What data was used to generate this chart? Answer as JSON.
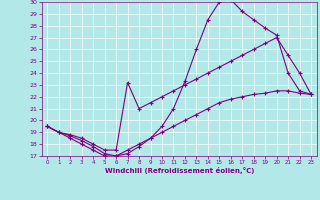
{
  "xlabel": "Windchill (Refroidissement éolien,°C)",
  "bg_color": "#b2e8e8",
  "line_color": "#800080",
  "grid_color": "#ffffff",
  "xlim": [
    -0.5,
    23.5
  ],
  "ylim": [
    17,
    30
  ],
  "xticks": [
    0,
    1,
    2,
    3,
    4,
    5,
    6,
    7,
    8,
    9,
    10,
    11,
    12,
    13,
    14,
    15,
    16,
    17,
    18,
    19,
    20,
    21,
    22,
    23
  ],
  "yticks": [
    17,
    18,
    19,
    20,
    21,
    22,
    23,
    24,
    25,
    26,
    27,
    28,
    29,
    30
  ],
  "lines": [
    {
      "x": [
        0,
        1,
        2,
        3,
        4,
        5,
        6,
        7,
        8,
        9,
        10,
        11,
        12,
        13,
        14,
        15,
        16,
        17,
        18,
        19,
        20,
        21,
        22,
        23
      ],
      "y": [
        19.5,
        19.0,
        18.5,
        18.0,
        17.5,
        17.0,
        17.0,
        17.5,
        18.0,
        18.5,
        19.0,
        19.5,
        20.0,
        20.5,
        21.0,
        21.5,
        21.8,
        22.0,
        22.2,
        22.3,
        22.5,
        22.5,
        22.3,
        22.2
      ]
    },
    {
      "x": [
        0,
        1,
        2,
        3,
        4,
        5,
        6,
        7,
        8,
        9,
        10,
        11,
        12,
        13,
        14,
        15,
        16,
        17,
        18,
        19,
        20,
        21,
        22,
        23
      ],
      "y": [
        19.5,
        19.0,
        18.7,
        18.3,
        17.8,
        17.2,
        17.0,
        17.2,
        17.8,
        18.5,
        19.5,
        21.0,
        23.3,
        26.0,
        28.5,
        30.0,
        30.2,
        29.2,
        28.5,
        27.8,
        27.2,
        24.0,
        22.5,
        22.2
      ]
    },
    {
      "x": [
        0,
        1,
        2,
        3,
        4,
        5,
        6,
        7,
        8,
        9,
        10,
        11,
        12,
        13,
        14,
        15,
        16,
        17,
        18,
        19,
        20,
        21,
        22,
        23
      ],
      "y": [
        19.5,
        19.0,
        18.8,
        18.5,
        18.0,
        17.5,
        17.5,
        23.2,
        21.0,
        21.5,
        22.0,
        22.5,
        23.0,
        23.5,
        24.0,
        24.5,
        25.0,
        25.5,
        26.0,
        26.5,
        27.0,
        25.5,
        24.0,
        22.2
      ]
    }
  ]
}
